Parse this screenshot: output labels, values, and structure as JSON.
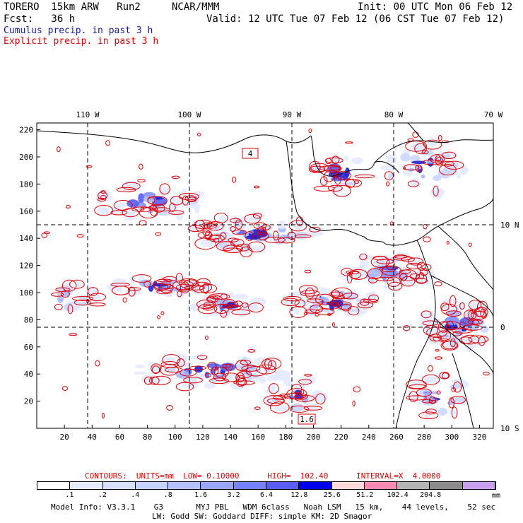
{
  "header": {
    "model": "TORERO  15km ARW   Run2",
    "org": "NCAR/MMM",
    "init": "Init: 00 UTC Mon 06 Feb 12",
    "fcst": "Fcst:   36 h",
    "valid": "Valid: 12 UTC Tue 07 Feb 12 (06 CST Tue 07 Feb 12)",
    "field1": "Cumulus precip. in past 3 h",
    "field2": "Explicit precip. in past 3 h"
  },
  "colors": {
    "field1": "#1a1aa0",
    "field2": "#e00000",
    "contour": "#e00000",
    "coast": "#000000"
  },
  "axes": {
    "x_ticks": [
      "20",
      "40",
      "60",
      "80",
      "100",
      "120",
      "140",
      "160",
      "180",
      "200",
      "220",
      "240",
      "260",
      "280",
      "300",
      "320"
    ],
    "y_ticks": [
      "20",
      "40",
      "60",
      "80",
      "100",
      "120",
      "140",
      "160",
      "180",
      "200",
      "220"
    ],
    "lon_labels": [
      "110 W",
      "100 W",
      "90 W",
      "80 W",
      "70 W"
    ],
    "lat_labels": [
      "10 N",
      "0",
      "10 S"
    ]
  },
  "map_labels": {
    "box1": "4",
    "box2": "1.6"
  },
  "legend": {
    "contours": "CONTOURS:  UNITS=mm  LOW= 0.10000      HIGH=  102.40      INTERVAL=X  4.0000",
    "unit": "mm",
    "thresholds": [
      ".1",
      ".2",
      ".4",
      ".8",
      "1.6",
      "3.2",
      "6.4",
      "12.8",
      "25.6",
      "51.2",
      "102.4",
      "204.8"
    ],
    "swatches": [
      "#ffffff",
      "#e8ecff",
      "#d8e0ff",
      "#c8d2ff",
      "#b4c0ff",
      "#9aa6ff",
      "#7882ff",
      "#5a5ef5",
      "#0000ee",
      "#ffdada",
      "#ff8ab4",
      "#b4b4b4",
      "#8c8c8c",
      "#c8a0f0"
    ]
  },
  "model_info": {
    "line1": "Model Info: V3.3.1    G3       MYJ PBL   WDM 6class   Noah LSM   15 km,    44 levels,    52 sec",
    "line2": "LW: Godd SW: Goddard DIFF: simple KM: 2D Smagor"
  }
}
